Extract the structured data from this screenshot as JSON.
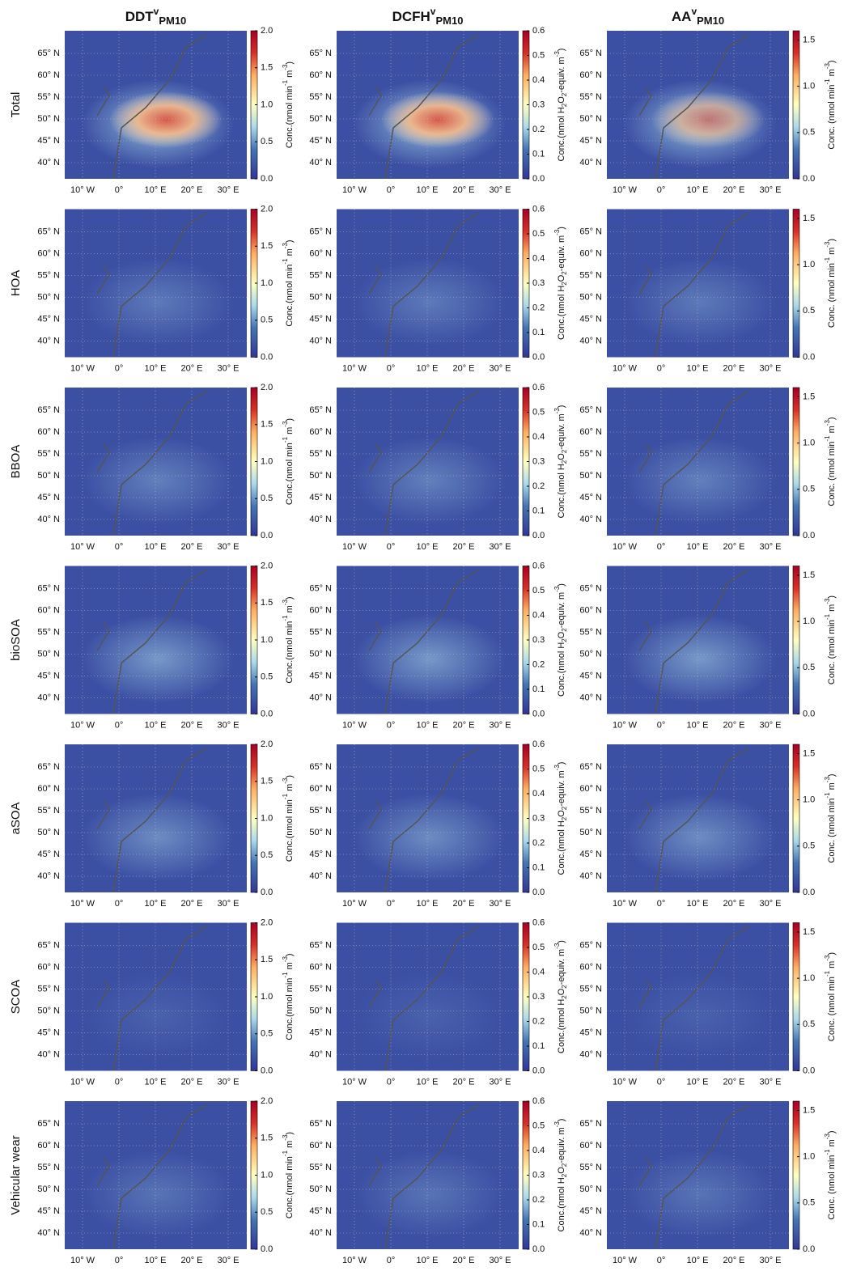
{
  "columns": [
    {
      "title": {
        "main": "DDT",
        "sup": "v",
        "sub": "PM10"
      },
      "colorbar": {
        "label": [
          {
            "text": "Conc.(nmol min"
          },
          {
            "text": "-1",
            "script": "sup"
          },
          {
            "text": " m"
          },
          {
            "text": "-3",
            "script": "sup"
          },
          {
            "text": ")"
          }
        ],
        "lim": [
          0,
          2
        ],
        "ticks": [
          {
            "value": 0,
            "label": "0.0"
          },
          {
            "value": 0.5,
            "label": "0.5"
          },
          {
            "value": 1,
            "label": "1.0"
          },
          {
            "value": 1.5,
            "label": "1.5"
          },
          {
            "value": 2,
            "label": "2.0"
          }
        ]
      }
    },
    {
      "title": {
        "main": "DCFH",
        "sup": "v",
        "sub": "PM10"
      },
      "colorbar": {
        "label": [
          {
            "text": "Conc.(nmol H"
          },
          {
            "text": "2",
            "script": "sub"
          },
          {
            "text": "O"
          },
          {
            "text": "2",
            "script": "sub"
          },
          {
            "text": "-equiv. m"
          },
          {
            "text": "-3",
            "script": "sup"
          },
          {
            "text": ")"
          }
        ],
        "lim": [
          0,
          0.6
        ],
        "ticks": [
          {
            "value": 0,
            "label": "0.0"
          },
          0.1,
          0.2,
          0.3,
          0.4,
          0.5,
          0.6
        ]
      }
    },
    {
      "title": {
        "main": "AA",
        "sup": "v",
        "sub": "PM10"
      },
      "colorbar": {
        "label": [
          {
            "text": "Conc. (nmol min"
          },
          {
            "text": "-1",
            "script": "sup"
          },
          {
            "text": " m"
          },
          {
            "text": "-3",
            "script": "sup"
          },
          {
            "text": ")"
          }
        ],
        "lim": [
          0,
          1.6
        ],
        "ticks": [
          {
            "value": 0,
            "label": "0.0"
          },
          0.5,
          {
            "value": 1,
            "label": "1.0"
          },
          1.5
        ]
      }
    }
  ],
  "rows": [
    "Total",
    "HOA",
    "BBOA",
    "bioSOA",
    "aSOA",
    "SCOA",
    "Vehicular wear"
  ],
  "lat_ticks": [
    "65° N",
    "60° N",
    "55° N",
    "50° N",
    "45° N",
    "40° N"
  ],
  "lon_ticks": [
    "10° W",
    "0°",
    "10° E",
    "20° E",
    "30° E"
  ]
}
